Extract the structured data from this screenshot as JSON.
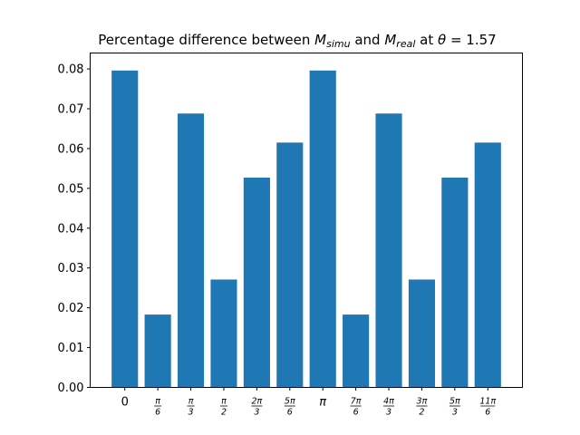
{
  "chart_data": {
    "type": "bar",
    "title": {
      "prefix": "Percentage difference between ",
      "m1_base": "M",
      "m1_sub": "simu",
      "middle": " and ",
      "m2_base": "M",
      "m2_sub": "real",
      "at": " at ",
      "theta": "θ",
      "eq": " = 1.57"
    },
    "xlabel": "",
    "ylabel": "",
    "ylim": [
      0,
      0.084
    ],
    "yticks": [
      "0.00",
      "0.01",
      "0.02",
      "0.03",
      "0.04",
      "0.05",
      "0.06",
      "0.07",
      "0.08"
    ],
    "categories": [
      {
        "num": "0",
        "den": ""
      },
      {
        "num": "π",
        "den": "6"
      },
      {
        "num": "π",
        "den": "3"
      },
      {
        "num": "π",
        "den": "2"
      },
      {
        "num": "2π",
        "den": "3"
      },
      {
        "num": "5π",
        "den": "6"
      },
      {
        "num": "π",
        "den": ""
      },
      {
        "num": "7π",
        "den": "6"
      },
      {
        "num": "4π",
        "den": "3"
      },
      {
        "num": "3π",
        "den": "2"
      },
      {
        "num": "5π",
        "den": "3"
      },
      {
        "num": "11π",
        "den": "6"
      }
    ],
    "values": [
      0.0796,
      0.0183,
      0.0688,
      0.0271,
      0.0527,
      0.0615,
      0.0796,
      0.0183,
      0.0688,
      0.0271,
      0.0527,
      0.0615
    ],
    "bar_color": "#1f77b4",
    "grid": false,
    "legend": "none"
  }
}
